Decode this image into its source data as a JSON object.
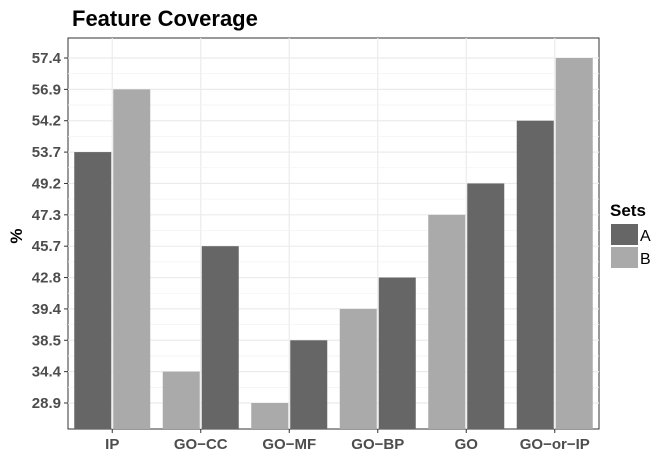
{
  "chart_data": {
    "type": "bar",
    "title": "Feature Coverage",
    "ylabel": "%",
    "xlabel": "",
    "categories": [
      "IP",
      "GO−CC",
      "GO−MF",
      "GO−BP",
      "GO",
      "GO−or−IP"
    ],
    "y_tick_labels": [
      "28.9",
      "34.4",
      "38.5",
      "39.4",
      "42.8",
      "45.7",
      "47.3",
      "49.2",
      "53.7",
      "54.2",
      "56.9",
      "57.4"
    ],
    "series": [
      {
        "name": "A",
        "color": "#666666",
        "values": [
          "53.7",
          "45.7",
          "38.5",
          "42.8",
          "49.2",
          "54.2"
        ]
      },
      {
        "name": "B",
        "color": "#aaaaaa",
        "values": [
          "56.9",
          "34.4",
          "28.9",
          "39.4",
          "47.3",
          "57.4"
        ]
      }
    ],
    "bar_order": [
      [
        "A",
        "B"
      ],
      [
        "B",
        "A"
      ],
      [
        "B",
        "A"
      ],
      [
        "B",
        "A"
      ],
      [
        "B",
        "A"
      ],
      [
        "A",
        "B"
      ]
    ],
    "legend": {
      "title": "Sets",
      "position": "right",
      "entries": [
        "A",
        "B"
      ]
    },
    "grid": true,
    "background": "#ffffff",
    "grid_color": "#ebebeb",
    "axis_text_color": "#4d4d4d"
  }
}
